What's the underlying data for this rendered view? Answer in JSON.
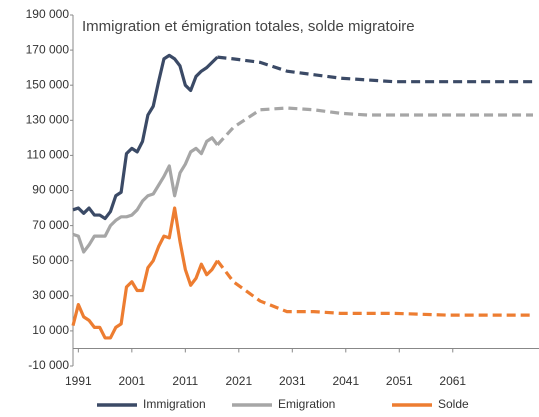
{
  "chart_data": {
    "type": "line",
    "title": "Immigration et émigration totales, solde migratoire",
    "x": [
      1990,
      1991,
      1992,
      1993,
      1994,
      1995,
      1996,
      1997,
      1998,
      1999,
      2000,
      2001,
      2002,
      2003,
      2004,
      2005,
      2006,
      2007,
      2008,
      2009,
      2010,
      2011,
      2012,
      2013,
      2014,
      2015,
      2016,
      2017,
      2020,
      2025,
      2030,
      2035,
      2040,
      2045,
      2050,
      2060,
      2076
    ],
    "projection_from": 2017,
    "series": [
      {
        "name": "Immigration",
        "color": "#3b4a66",
        "values": [
          79000,
          80000,
          77000,
          80000,
          76000,
          76000,
          74000,
          78000,
          87000,
          89000,
          111000,
          114000,
          112000,
          118000,
          133000,
          138000,
          152000,
          165000,
          167000,
          165000,
          161000,
          150000,
          147000,
          155000,
          158000,
          160000,
          163000,
          166000,
          165000,
          163000,
          158000,
          156000,
          154000,
          153000,
          152000,
          152000,
          152000
        ]
      },
      {
        "name": "Emigration",
        "color": "#a6a6a6",
        "values": [
          65000,
          64000,
          55000,
          59000,
          64000,
          64000,
          64000,
          70000,
          73000,
          75000,
          75000,
          76000,
          79000,
          84000,
          87000,
          88000,
          93000,
          98000,
          104000,
          87000,
          100000,
          105000,
          112000,
          114000,
          111000,
          118000,
          120000,
          116000,
          126000,
          136000,
          137000,
          136000,
          134000,
          133000,
          133000,
          133000,
          133000
        ]
      },
      {
        "name": "Solde",
        "color": "#ed7d31",
        "values": [
          13000,
          25000,
          18000,
          16000,
          12000,
          12000,
          6000,
          6000,
          12000,
          14000,
          35000,
          38000,
          33000,
          33000,
          46000,
          50000,
          58000,
          64000,
          63000,
          80000,
          61000,
          45000,
          36000,
          40000,
          48000,
          42000,
          45000,
          50000,
          38000,
          27000,
          21000,
          21000,
          20000,
          20000,
          20000,
          19000,
          19000
        ]
      }
    ],
    "xlim": [
      1990,
      2076
    ],
    "xticks": [
      1991,
      2001,
      2011,
      2021,
      2031,
      2041,
      2051,
      2061
    ],
    "ylim": [
      -10000,
      190000
    ],
    "yticks": [
      {
        "value": -10000,
        "label": "-10 000"
      },
      {
        "value": 10000,
        "label": "10 000"
      },
      {
        "value": 30000,
        "label": "30 000"
      },
      {
        "value": 50000,
        "label": "50 000"
      },
      {
        "value": 70000,
        "label": "70 000"
      },
      {
        "value": 90000,
        "label": "90 000"
      },
      {
        "value": 110000,
        "label": "110 000"
      },
      {
        "value": 130000,
        "label": "130 000"
      },
      {
        "value": 150000,
        "label": "150 000"
      },
      {
        "value": 170000,
        "label": "170 000"
      },
      {
        "value": 190000,
        "label": "190 000"
      }
    ],
    "grid": false,
    "legend": "bottom"
  }
}
